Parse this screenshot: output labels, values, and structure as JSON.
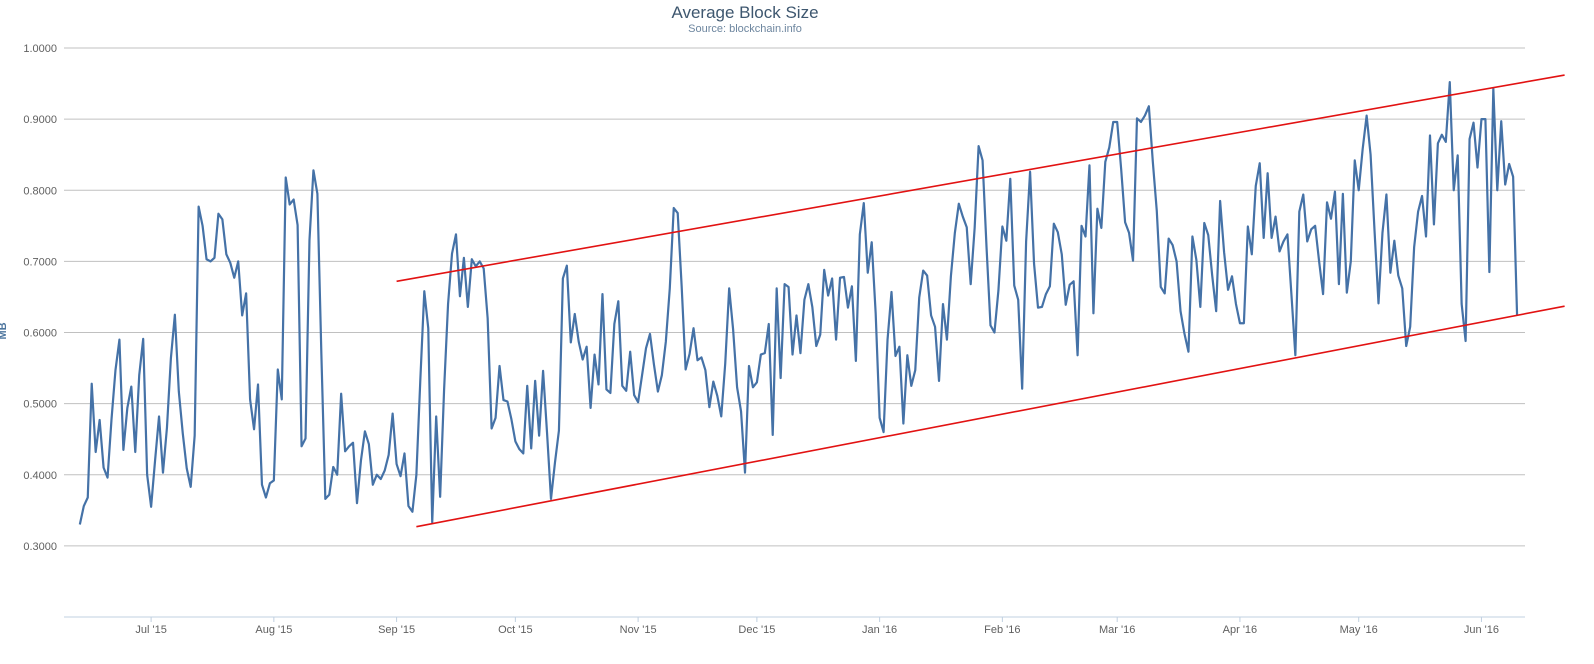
{
  "chart_data": {
    "type": "line",
    "title": "Average Block Size",
    "subtitle": "Source: blockchain.info",
    "ylabel": "MB",
    "ylim": [
      0.2,
      1.0
    ],
    "grid": true,
    "yticks": [
      "1.0000",
      "0.9000",
      "0.8000",
      "0.7000",
      "0.6000",
      "0.5000",
      "0.4000",
      "0.3000"
    ],
    "ytick_values": [
      1.0,
      0.9,
      0.8,
      0.7,
      0.6,
      0.5,
      0.4,
      0.3
    ],
    "xlim": [
      "2015-06-09",
      "2016-06-12"
    ],
    "xticks": [
      {
        "date": "2015-07-01",
        "label": "Jul '15"
      },
      {
        "date": "2015-08-01",
        "label": "Aug '15"
      },
      {
        "date": "2015-09-01",
        "label": "Sep '15"
      },
      {
        "date": "2015-10-01",
        "label": "Oct '15"
      },
      {
        "date": "2015-11-01",
        "label": "Nov '15"
      },
      {
        "date": "2015-12-01",
        "label": "Dec '15"
      },
      {
        "date": "2016-01-01",
        "label": "Jan '16"
      },
      {
        "date": "2016-02-01",
        "label": "Feb '16"
      },
      {
        "date": "2016-03-01",
        "label": "Mar '16"
      },
      {
        "date": "2016-04-01",
        "label": "Apr '16"
      },
      {
        "date": "2016-05-01",
        "label": "May '16"
      },
      {
        "date": "2016-06-01",
        "label": "Jun '16"
      }
    ],
    "series": [
      {
        "color": "#4572a7",
        "start_date": "2015-06-13",
        "step_days": 1,
        "values": [
          0.33,
          0.356,
          0.368,
          0.528,
          0.432,
          0.477,
          0.41,
          0.396,
          0.478,
          0.547,
          0.59,
          0.435,
          0.494,
          0.524,
          0.432,
          0.54,
          0.591,
          0.4,
          0.355,
          0.42,
          0.482,
          0.403,
          0.466,
          0.564,
          0.625,
          0.517,
          0.458,
          0.409,
          0.383,
          0.455,
          0.777,
          0.75,
          0.703,
          0.7,
          0.705,
          0.767,
          0.759,
          0.71,
          0.698,
          0.677,
          0.7,
          0.624,
          0.655,
          0.506,
          0.464,
          0.527,
          0.386,
          0.368,
          0.388,
          0.392,
          0.548,
          0.506,
          0.818,
          0.78,
          0.787,
          0.751,
          0.44,
          0.451,
          0.73,
          0.828,
          0.795,
          0.57,
          0.366,
          0.372,
          0.411,
          0.4,
          0.514,
          0.433,
          0.44,
          0.445,
          0.36,
          0.42,
          0.461,
          0.443,
          0.386,
          0.4,
          0.394,
          0.406,
          0.428,
          0.486,
          0.415,
          0.398,
          0.43,
          0.356,
          0.348,
          0.4,
          0.534,
          0.658,
          0.606,
          0.333,
          0.482,
          0.369,
          0.52,
          0.64,
          0.711,
          0.738,
          0.651,
          0.705,
          0.636,
          0.703,
          0.693,
          0.7,
          0.69,
          0.62,
          0.465,
          0.48,
          0.553,
          0.505,
          0.503,
          0.478,
          0.447,
          0.436,
          0.43,
          0.525,
          0.437,
          0.532,
          0.455,
          0.546,
          0.459,
          0.366,
          0.417,
          0.462,
          0.676,
          0.694,
          0.586,
          0.626,
          0.587,
          0.562,
          0.58,
          0.494,
          0.569,
          0.527,
          0.654,
          0.52,
          0.515,
          0.612,
          0.644,
          0.525,
          0.518,
          0.573,
          0.512,
          0.502,
          0.54,
          0.578,
          0.598,
          0.555,
          0.517,
          0.54,
          0.587,
          0.662,
          0.775,
          0.768,
          0.665,
          0.548,
          0.57,
          0.606,
          0.561,
          0.565,
          0.547,
          0.495,
          0.531,
          0.511,
          0.482,
          0.556,
          0.662,
          0.604,
          0.523,
          0.489,
          0.403,
          0.553,
          0.523,
          0.53,
          0.569,
          0.571,
          0.612,
          0.456,
          0.662,
          0.536,
          0.668,
          0.664,
          0.569,
          0.624,
          0.571,
          0.646,
          0.668,
          0.636,
          0.581,
          0.597,
          0.688,
          0.652,
          0.676,
          0.59,
          0.677,
          0.678,
          0.635,
          0.665,
          0.56,
          0.738,
          0.782,
          0.684,
          0.727,
          0.627,
          0.48,
          0.46,
          0.59,
          0.657,
          0.567,
          0.58,
          0.472,
          0.568,
          0.525,
          0.547,
          0.649,
          0.687,
          0.68,
          0.624,
          0.608,
          0.532,
          0.64,
          0.59,
          0.679,
          0.74,
          0.781,
          0.763,
          0.748,
          0.668,
          0.747,
          0.862,
          0.842,
          0.72,
          0.61,
          0.6,
          0.659,
          0.749,
          0.729,
          0.816,
          0.666,
          0.646,
          0.521,
          0.728,
          0.826,
          0.697,
          0.635,
          0.636,
          0.654,
          0.665,
          0.753,
          0.741,
          0.71,
          0.639,
          0.667,
          0.672,
          0.568,
          0.75,
          0.735,
          0.835,
          0.627,
          0.774,
          0.747,
          0.84,
          0.86,
          0.896,
          0.896,
          0.83,
          0.755,
          0.74,
          0.701,
          0.901,
          0.896,
          0.905,
          0.918,
          0.84,
          0.771,
          0.664,
          0.655,
          0.732,
          0.723,
          0.7,
          0.63,
          0.598,
          0.573,
          0.735,
          0.702,
          0.636,
          0.754,
          0.737,
          0.68,
          0.63,
          0.785,
          0.713,
          0.66,
          0.679,
          0.64,
          0.613,
          0.613,
          0.749,
          0.71,
          0.806,
          0.838,
          0.733,
          0.824,
          0.733,
          0.763,
          0.714,
          0.728,
          0.738,
          0.654,
          0.568,
          0.77,
          0.794,
          0.728,
          0.745,
          0.75,
          0.7,
          0.654,
          0.783,
          0.76,
          0.798,
          0.668,
          0.795,
          0.656,
          0.7,
          0.842,
          0.8,
          0.858,
          0.905,
          0.85,
          0.743,
          0.641,
          0.74,
          0.794,
          0.684,
          0.729,
          0.68,
          0.662,
          0.581,
          0.608,
          0.72,
          0.77,
          0.792,
          0.735,
          0.877,
          0.752,
          0.866,
          0.878,
          0.868,
          0.952,
          0.8,
          0.849,
          0.64,
          0.588,
          0.872,
          0.895,
          0.832,
          0.9,
          0.9,
          0.685,
          0.943,
          0.8,
          0.897,
          0.808,
          0.837,
          0.819,
          0.624
        ]
      }
    ],
    "trend_lines": [
      {
        "color": "#e21212",
        "points": [
          {
            "date": "2015-09-01",
            "value": 0.672
          },
          {
            "date": "2016-06-22",
            "value": 0.962
          }
        ]
      },
      {
        "color": "#e21212",
        "points": [
          {
            "date": "2015-09-06",
            "value": 0.327
          },
          {
            "date": "2016-06-22",
            "value": 0.637
          }
        ]
      }
    ]
  }
}
